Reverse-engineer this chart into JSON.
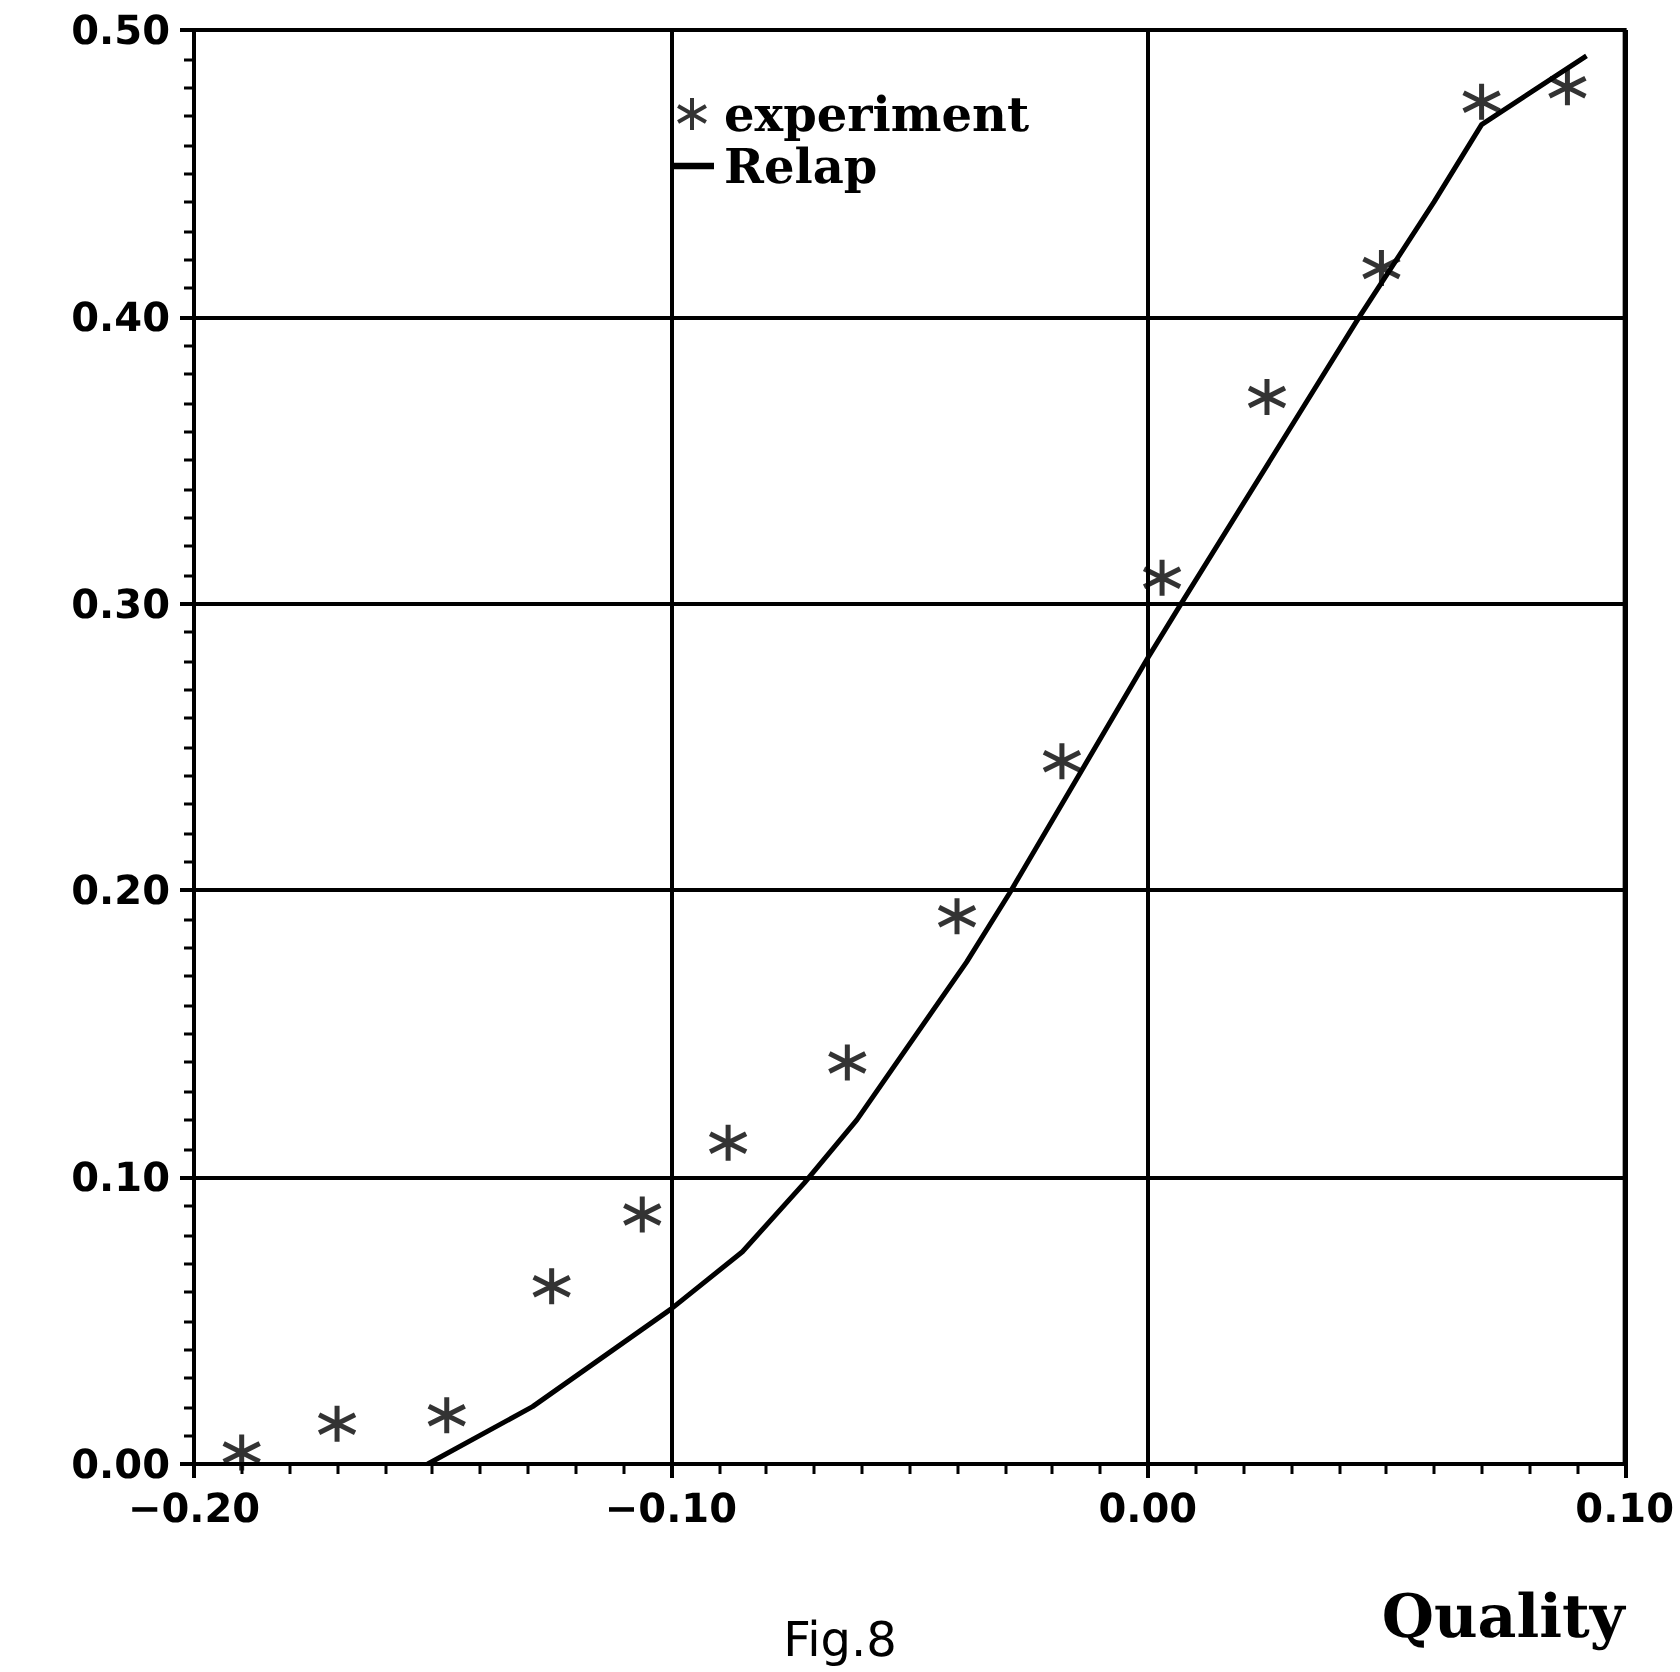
{
  "chart_data": {
    "type": "scatter",
    "xlabel": "Quality",
    "annotations": [
      "Fig.8"
    ],
    "xlim": [
      -0.2,
      0.1
    ],
    "ylim": [
      0,
      0.5
    ],
    "xticks": [
      {
        "value": -0.2,
        "label": "−0.20"
      },
      {
        "value": -0.1,
        "label": "−0.10"
      },
      {
        "value": 0,
        "label": "0.00"
      },
      {
        "value": 0.1,
        "label": "0.10"
      }
    ],
    "yticks": [
      {
        "value": 0,
        "label": "0.00"
      },
      {
        "value": 0.1,
        "label": "0.10"
      },
      {
        "value": 0.2,
        "label": "0.20"
      },
      {
        "value": 0.3,
        "label": "0.30"
      },
      {
        "value": 0.4,
        "label": "0.40"
      },
      {
        "value": 0.5,
        "label": "0.50"
      }
    ],
    "grid": true,
    "legend": "top",
    "series": [
      {
        "name": "experiment",
        "marker": "cross",
        "color": "#000000",
        "x": [
          -0.19,
          -0.17,
          -0.147,
          -0.125,
          -0.106,
          -0.088,
          -0.063,
          -0.04,
          -0.018,
          0.003,
          0.025,
          0.049,
          0.07,
          0.088
        ],
        "values": [
          0.004,
          0.014,
          0.017,
          0.062,
          0.087,
          0.112,
          0.14,
          0.191,
          0.245,
          0.309,
          0.372,
          0.417,
          0.475,
          0.48
        ]
      },
      {
        "name": "Relap",
        "type": "line",
        "marker": "none",
        "line_style": "solid",
        "color": "#000000",
        "x": [
          -0.151,
          -0.129,
          -0.1,
          -0.085,
          -0.072,
          -0.061,
          -0.038,
          -0.029,
          0.0,
          0.007,
          0.044,
          0.06,
          0.07,
          0.092
        ],
        "values": [
          0,
          0.02,
          0.054,
          0.074,
          0.098,
          0.12,
          0.175,
          0.199,
          0.281,
          0.3,
          0.399,
          0.44,
          0.467,
          0.491
        ]
      }
    ]
  }
}
